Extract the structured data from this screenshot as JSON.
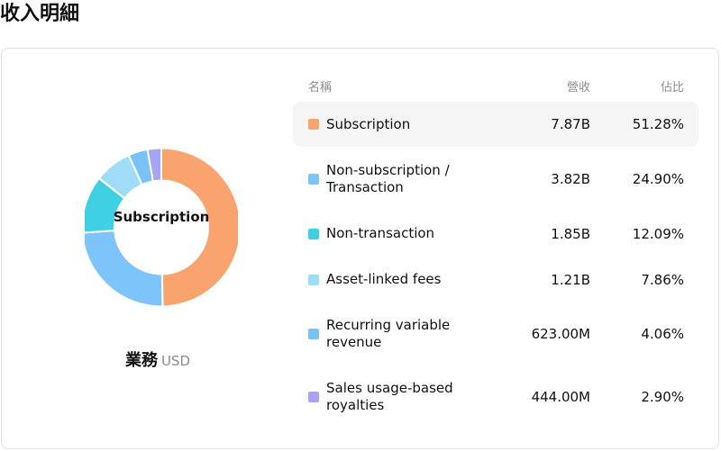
{
  "page": {
    "title": "收入明細"
  },
  "donut": {
    "center_label": "Subscription"
  },
  "caption": {
    "segment": "業務",
    "currency": "USD"
  },
  "table": {
    "headers": {
      "name": "名稱",
      "revenue": "營收",
      "share": "佔比"
    },
    "rows": [
      {
        "name": "Subscription",
        "revenue": "7.87B",
        "share": "51.28%",
        "color": "#f9a46e",
        "highlighted": true
      },
      {
        "name": "Non-subscription / Transaction",
        "revenue": "3.82B",
        "share": "24.90%",
        "color": "#7cc4fa"
      },
      {
        "name": "Non-transaction",
        "revenue": "1.85B",
        "share": "12.09%",
        "color": "#3fd0e4"
      },
      {
        "name": "Asset-linked fees",
        "revenue": "1.21B",
        "share": "7.86%",
        "color": "#9fdcf8"
      },
      {
        "name": "Recurring variable revenue",
        "revenue": "623.00M",
        "share": "4.06%",
        "color": "#78c2f8"
      },
      {
        "name": "Sales usage-based royalties",
        "revenue": "444.00M",
        "share": "2.90%",
        "color": "#a7a3f5"
      }
    ]
  },
  "chart_data": {
    "type": "pie",
    "categories": [
      "Subscription",
      "Non-subscription / Transaction",
      "Non-transaction",
      "Asset-linked fees",
      "Recurring variable revenue",
      "Sales usage-based royalties"
    ],
    "values": [
      51.28,
      24.9,
      12.09,
      7.86,
      4.06,
      2.9
    ],
    "revenue": [
      "7.87B",
      "3.82B",
      "1.85B",
      "1.21B",
      "623.00M",
      "444.00M"
    ],
    "colors": [
      "#f9a46e",
      "#7cc4fa",
      "#3fd0e4",
      "#9fdcf8",
      "#78c2f8",
      "#a7a3f5"
    ],
    "donut": true
  }
}
